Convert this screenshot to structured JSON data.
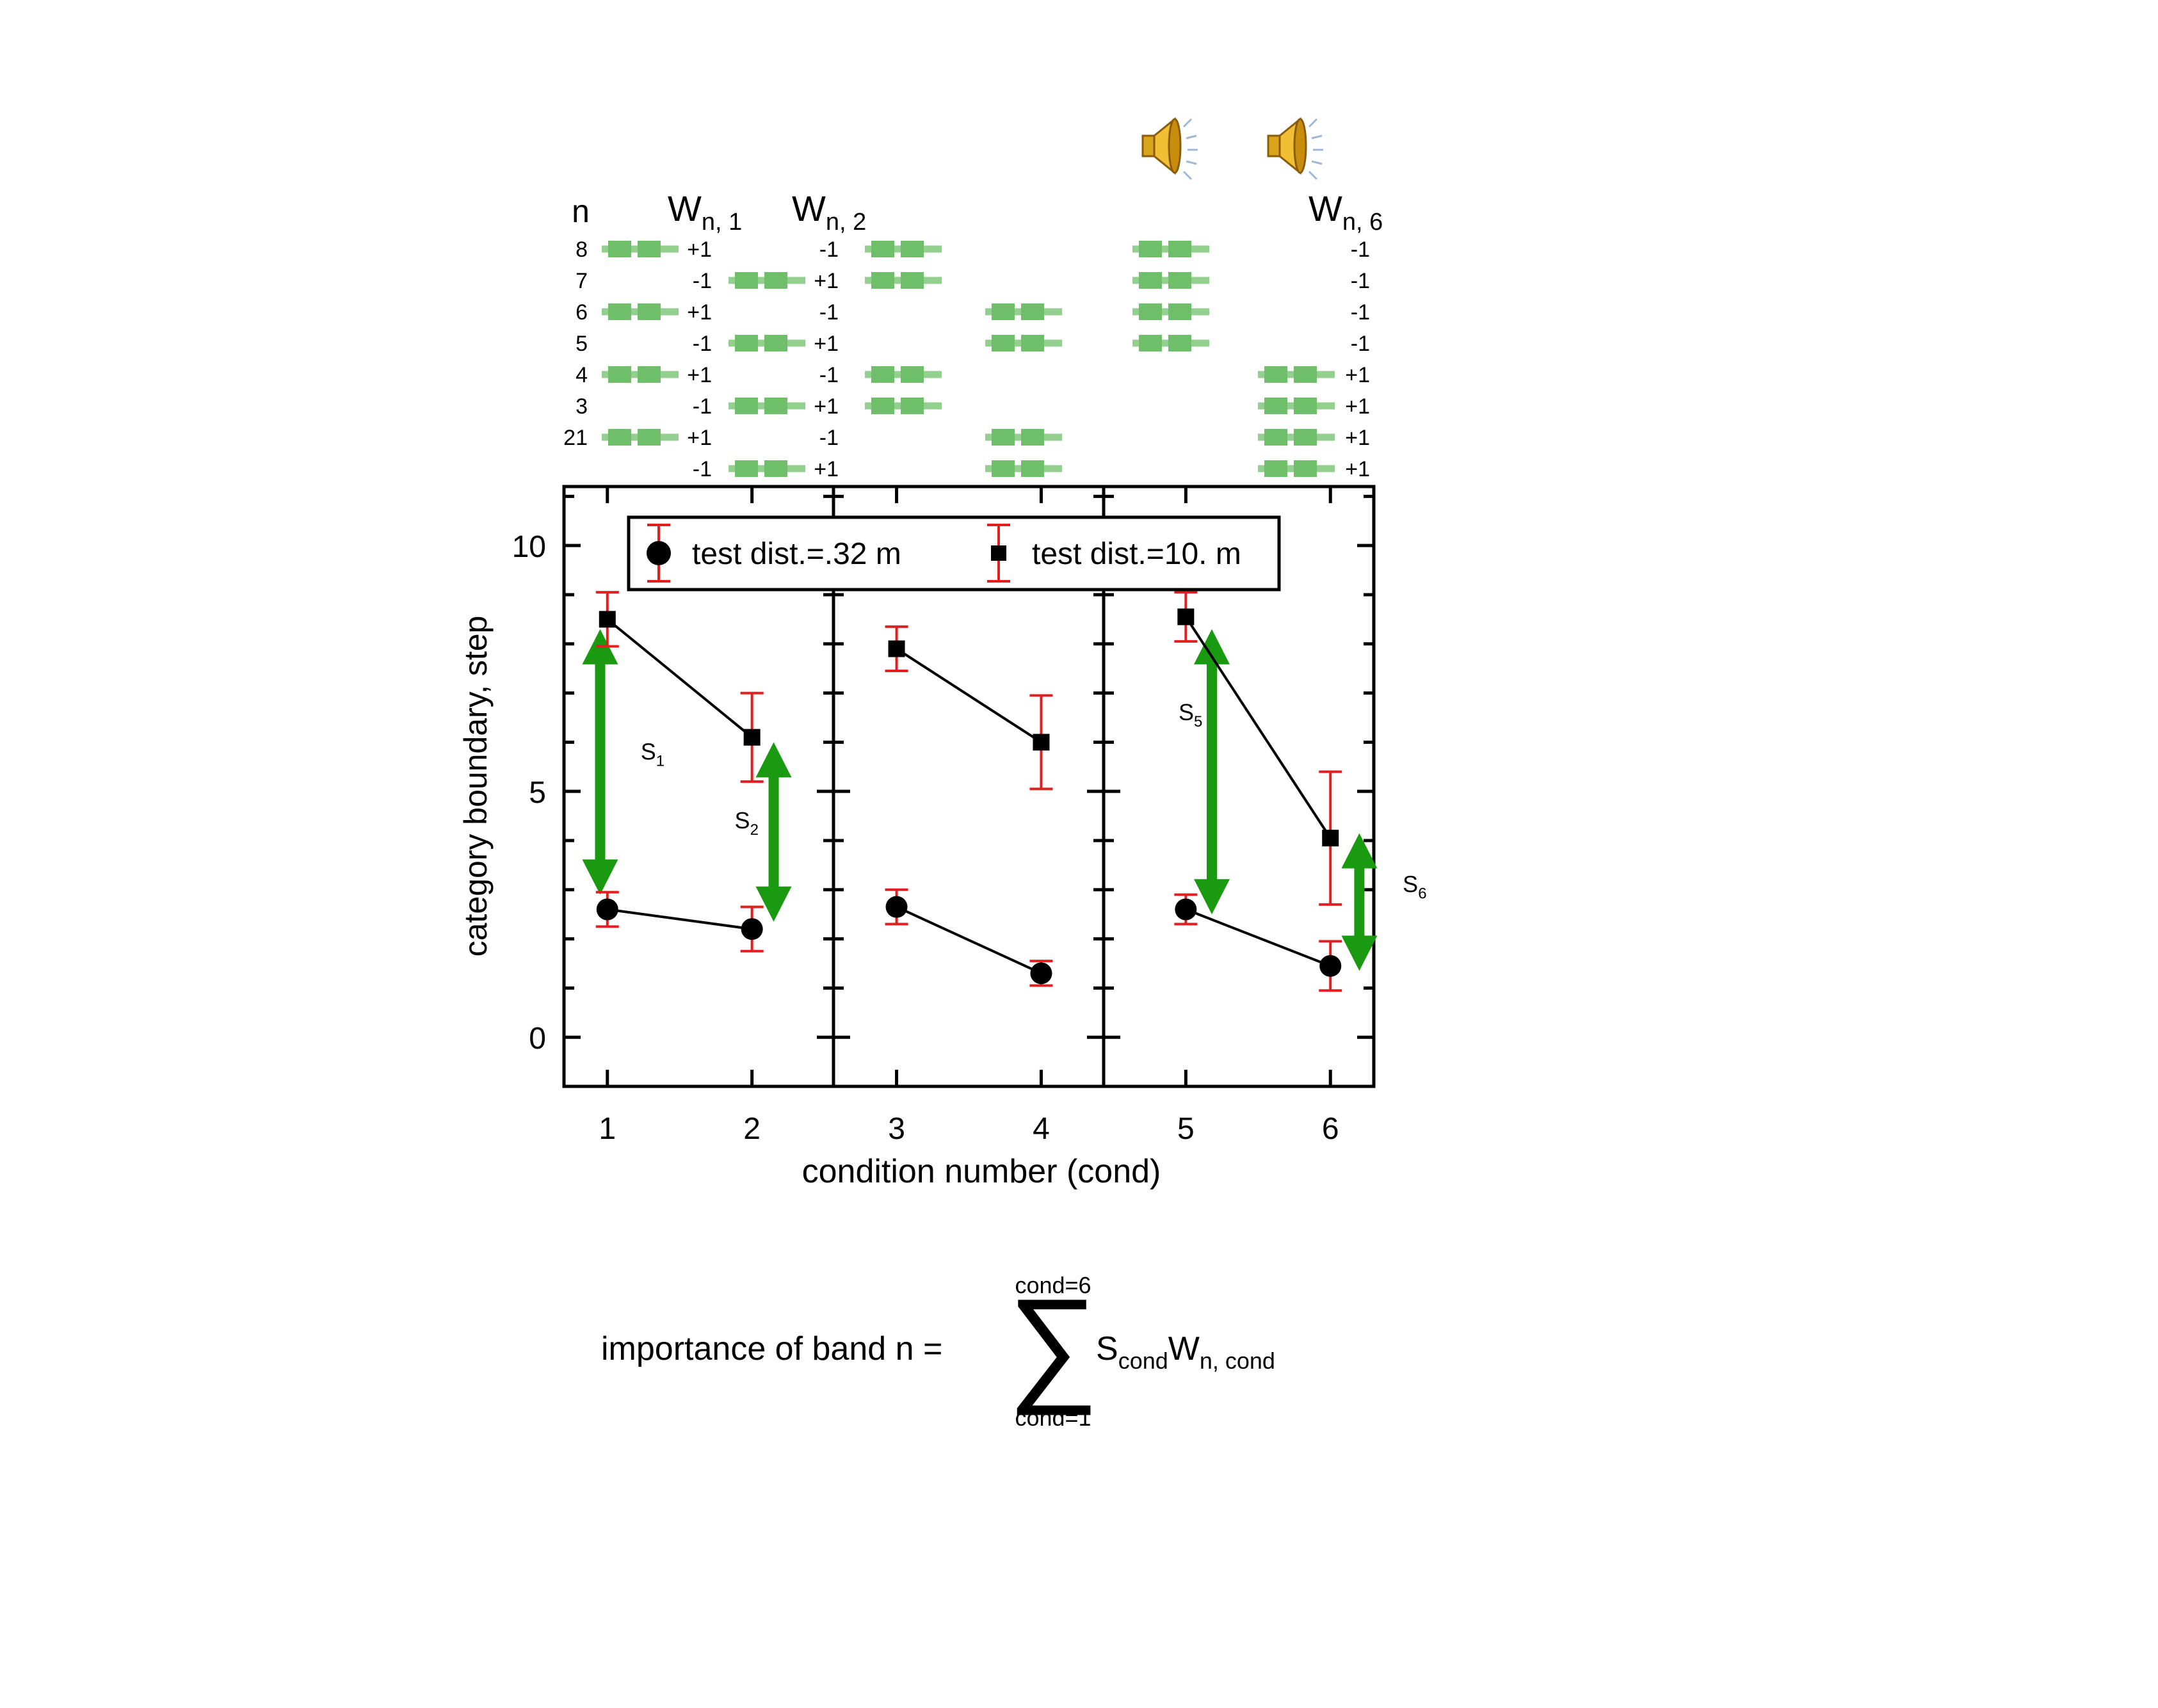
{
  "chart_data": {
    "type": "line",
    "ylabel": "category boundary, step",
    "xlabel": "condition number (cond)",
    "ylim": [
      -1,
      11.2
    ],
    "xlim": [
      0.7,
      6.3
    ],
    "y_ticks": [
      0,
      5,
      10
    ],
    "y_tick_labels": [
      "0",
      "5",
      "10"
    ],
    "x_tick_labels": [
      "1",
      "2",
      "3",
      "4",
      "5",
      "6"
    ],
    "panels": [
      [
        1,
        2
      ],
      [
        3,
        4
      ],
      [
        5,
        6
      ]
    ],
    "legend_position": "top",
    "series": [
      {
        "name": "test dist.=.32 m",
        "marker": "circle",
        "x": [
          1,
          2,
          3,
          4,
          5,
          6
        ],
        "y": [
          2.6,
          2.2,
          2.65,
          1.3,
          2.6,
          1.45
        ],
        "err": [
          0.35,
          0.45,
          0.35,
          0.25,
          0.3,
          0.5
        ]
      },
      {
        "name": "test dist.=10. m",
        "marker": "square",
        "x": [
          1,
          2,
          3,
          4,
          5,
          6
        ],
        "y": [
          8.5,
          6.1,
          7.9,
          6.0,
          8.55,
          4.05
        ],
        "err": [
          0.55,
          0.9,
          0.45,
          0.95,
          0.5,
          1.35
        ]
      }
    ],
    "error_bar_color": "#e02020",
    "line_color": "#000000",
    "arrow_color": "#1a9a10",
    "arrows": [
      {
        "label": "S",
        "sub": "1",
        "x": 0.95,
        "y0": 2.9,
        "y1": 8.3
      },
      {
        "label": "S",
        "sub": "2",
        "x": 2.15,
        "y0": 2.35,
        "y1": 6.0
      },
      {
        "label": "S",
        "sub": "5",
        "x": 5.18,
        "y0": 2.5,
        "y1": 8.3
      },
      {
        "label": "S",
        "sub": "6",
        "x": 6.2,
        "y0": 1.35,
        "y1": 4.15
      }
    ],
    "arrow_label_positions": [
      {
        "x": 1.23,
        "y": 5.65
      },
      {
        "x": 1.88,
        "y": 4.25
      },
      {
        "x": 4.95,
        "y": 6.45
      },
      {
        "x": 6.5,
        "y": 2.95
      }
    ]
  },
  "band_diagram": {
    "header_n": "n",
    "row_labels": [
      "8",
      "7",
      "6",
      "5",
      "4",
      "3",
      "21",
      ""
    ],
    "band_color": "#6fbf6a",
    "weight_headers": [
      {
        "main": "W",
        "sub": "n, 1"
      },
      {
        "main": "W",
        "sub": "n, 2"
      },
      {
        "main": "W",
        "sub": "n, 6"
      }
    ],
    "columns": [
      {
        "cond": 1,
        "weights": [
          "+1",
          "-1",
          "+1",
          "-1",
          "+1",
          "-1",
          "+1",
          "-1"
        ],
        "sound": false
      },
      {
        "cond": 2,
        "weights": [
          "-1",
          "+1",
          "-1",
          "+1",
          "-1",
          "+1",
          "-1",
          "+1"
        ],
        "sound": false
      },
      {
        "cond": 3,
        "bands": [
          1,
          1,
          0,
          0,
          1,
          1,
          0,
          0
        ],
        "sound": false
      },
      {
        "cond": 4,
        "bands": [
          0,
          0,
          1,
          1,
          0,
          0,
          1,
          1
        ],
        "sound": false
      },
      {
        "cond": 5,
        "bands": [
          1,
          1,
          1,
          1,
          0,
          0,
          0,
          0
        ],
        "sound": true
      },
      {
        "cond": 6,
        "weights": [
          "-1",
          "-1",
          "-1",
          "-1",
          "+1",
          "+1",
          "+1",
          "+1"
        ],
        "sound": true
      }
    ]
  },
  "formula": {
    "lhs": "importance of band n =",
    "upper": "cond=6",
    "lower": "cond=1",
    "sigma": "∑",
    "term1": "S",
    "term1_sub": "cond",
    "term2": "W",
    "term2_sub": "n, cond"
  }
}
